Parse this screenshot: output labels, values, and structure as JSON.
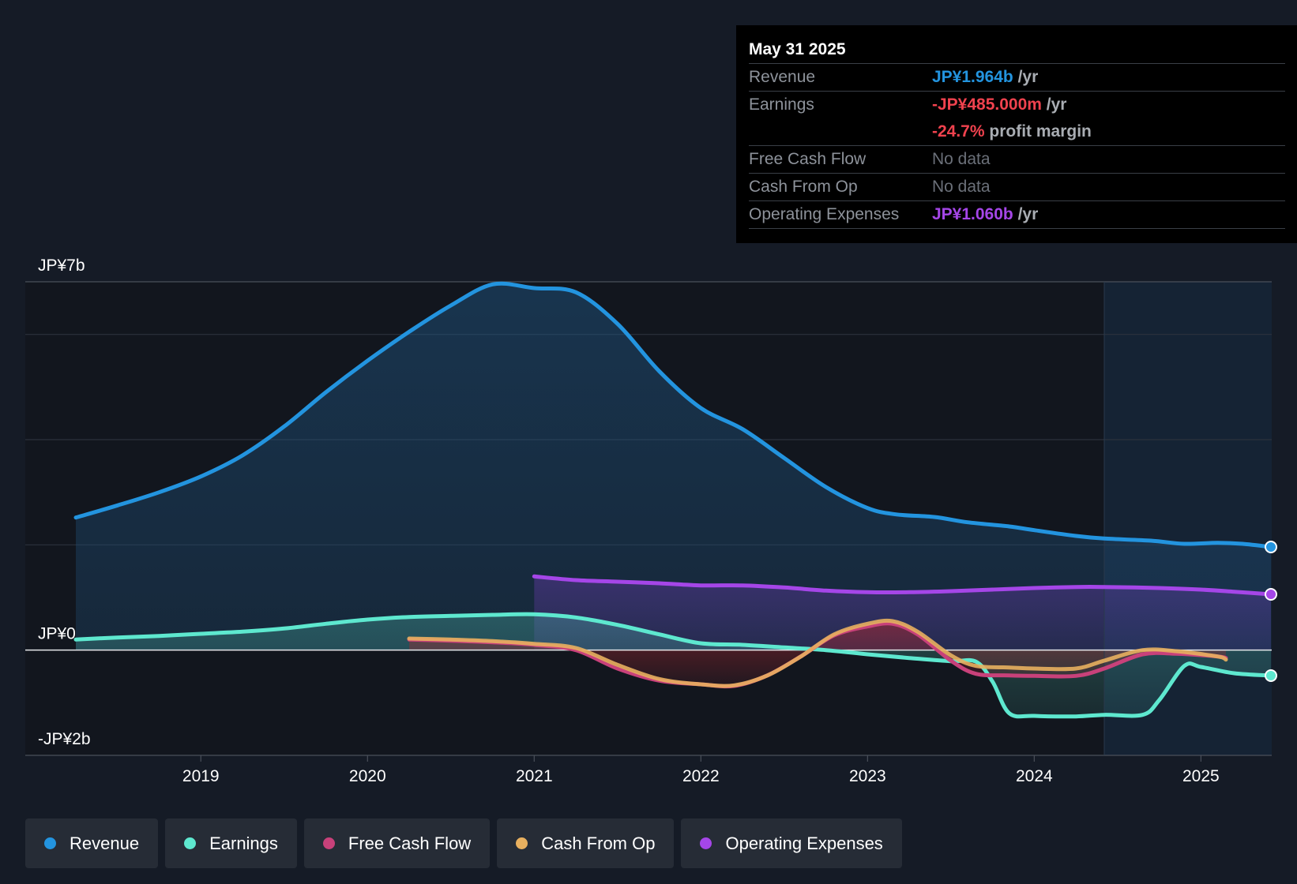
{
  "tooltip": {
    "date": "May 31 2025",
    "rows": {
      "revenue": {
        "label": "Revenue",
        "value": "JP¥1.964b",
        "unit": "/yr"
      },
      "earnings": {
        "label": "Earnings",
        "value": "-JP¥485.000m",
        "unit": "/yr",
        "margin_value": "-24.7%",
        "margin_unit": "profit margin"
      },
      "fcf": {
        "label": "Free Cash Flow",
        "value": "No data"
      },
      "cfo": {
        "label": "Cash From Op",
        "value": "No data"
      },
      "opex": {
        "label": "Operating Expenses",
        "value": "JP¥1.060b",
        "unit": "/yr"
      }
    }
  },
  "legend": {
    "revenue": "Revenue",
    "earnings": "Earnings",
    "fcf": "Free Cash Flow",
    "cfo": "Cash From Op",
    "opex": "Operating Expenses"
  },
  "colors": {
    "revenue": "#2394df",
    "earnings": "#5ee8cf",
    "fcf": "#c8417a",
    "cfo": "#e8b05f",
    "opex": "#a546e8",
    "earnings_negative": "#f0424e"
  },
  "chart_data": {
    "type": "area",
    "title": "",
    "y_unit": "JP¥ billions",
    "ylim": [
      -2,
      7
    ],
    "xlim": [
      2018.25,
      2025.42
    ],
    "y_labels": [
      {
        "value": 7,
        "label": "JP¥7b"
      },
      {
        "value": 0,
        "label": "JP¥0"
      },
      {
        "value": -2,
        "label": "-JP¥2b"
      }
    ],
    "gridlines": [
      7,
      6,
      4,
      2,
      0,
      -2
    ],
    "x_ticks": [
      {
        "value": 2019,
        "label": "2019"
      },
      {
        "value": 2020,
        "label": "2020"
      },
      {
        "value": 2021,
        "label": "2021"
      },
      {
        "value": 2022,
        "label": "2022"
      },
      {
        "value": 2023,
        "label": "2023"
      },
      {
        "value": 2024,
        "label": "2024"
      },
      {
        "value": 2025,
        "label": "2025"
      }
    ],
    "forecast_start": 2024.42,
    "series": [
      {
        "name": "Revenue",
        "key": "revenue",
        "points": [
          [
            2018.25,
            2.52
          ],
          [
            2018.5,
            2.75
          ],
          [
            2018.75,
            3.0
          ],
          [
            2019.0,
            3.3
          ],
          [
            2019.25,
            3.7
          ],
          [
            2019.5,
            4.25
          ],
          [
            2019.75,
            4.9
          ],
          [
            2020.0,
            5.5
          ],
          [
            2020.25,
            6.05
          ],
          [
            2020.5,
            6.55
          ],
          [
            2020.75,
            6.95
          ],
          [
            2021.0,
            6.88
          ],
          [
            2021.25,
            6.8
          ],
          [
            2021.5,
            6.2
          ],
          [
            2021.75,
            5.3
          ],
          [
            2022.0,
            4.6
          ],
          [
            2022.25,
            4.2
          ],
          [
            2022.5,
            3.65
          ],
          [
            2022.75,
            3.1
          ],
          [
            2023.0,
            2.7
          ],
          [
            2023.17,
            2.58
          ],
          [
            2023.4,
            2.53
          ],
          [
            2023.6,
            2.43
          ],
          [
            2023.85,
            2.35
          ],
          [
            2024.0,
            2.28
          ],
          [
            2024.25,
            2.17
          ],
          [
            2024.42,
            2.12
          ],
          [
            2024.7,
            2.08
          ],
          [
            2024.9,
            2.02
          ],
          [
            2025.1,
            2.04
          ],
          [
            2025.25,
            2.02
          ],
          [
            2025.42,
            1.96
          ]
        ]
      },
      {
        "name": "Earnings",
        "key": "earnings",
        "points": [
          [
            2018.25,
            0.2
          ],
          [
            2018.5,
            0.24
          ],
          [
            2018.75,
            0.27
          ],
          [
            2019.0,
            0.31
          ],
          [
            2019.25,
            0.35
          ],
          [
            2019.5,
            0.41
          ],
          [
            2019.75,
            0.5
          ],
          [
            2020.0,
            0.58
          ],
          [
            2020.25,
            0.63
          ],
          [
            2020.5,
            0.65
          ],
          [
            2020.75,
            0.67
          ],
          [
            2021.0,
            0.68
          ],
          [
            2021.25,
            0.62
          ],
          [
            2021.5,
            0.48
          ],
          [
            2021.75,
            0.3
          ],
          [
            2022.0,
            0.13
          ],
          [
            2022.25,
            0.1
          ],
          [
            2022.5,
            0.05
          ],
          [
            2022.75,
            0.0
          ],
          [
            2023.0,
            -0.08
          ],
          [
            2023.25,
            -0.15
          ],
          [
            2023.5,
            -0.21
          ],
          [
            2023.65,
            -0.22
          ],
          [
            2023.75,
            -0.6
          ],
          [
            2023.85,
            -1.2
          ],
          [
            2024.0,
            -1.25
          ],
          [
            2024.25,
            -1.26
          ],
          [
            2024.42,
            -1.23
          ],
          [
            2024.65,
            -1.23
          ],
          [
            2024.75,
            -0.95
          ],
          [
            2024.9,
            -0.3
          ],
          [
            2025.0,
            -0.32
          ],
          [
            2025.2,
            -0.44
          ],
          [
            2025.42,
            -0.485
          ]
        ]
      },
      {
        "name": "Free Cash Flow",
        "key": "fcf",
        "points": [
          [
            2020.25,
            0.2
          ],
          [
            2020.5,
            0.18
          ],
          [
            2020.75,
            0.15
          ],
          [
            2021.0,
            0.1
          ],
          [
            2021.25,
            0.0
          ],
          [
            2021.5,
            -0.35
          ],
          [
            2021.75,
            -0.58
          ],
          [
            2022.0,
            -0.65
          ],
          [
            2022.2,
            -0.68
          ],
          [
            2022.4,
            -0.48
          ],
          [
            2022.6,
            -0.12
          ],
          [
            2022.8,
            0.28
          ],
          [
            2023.0,
            0.45
          ],
          [
            2023.15,
            0.5
          ],
          [
            2023.3,
            0.3
          ],
          [
            2023.5,
            -0.2
          ],
          [
            2023.65,
            -0.45
          ],
          [
            2023.85,
            -0.48
          ],
          [
            2024.0,
            -0.49
          ],
          [
            2024.25,
            -0.49
          ],
          [
            2024.42,
            -0.35
          ],
          [
            2024.65,
            -0.08
          ],
          [
            2024.85,
            -0.07
          ],
          [
            2025.1,
            -0.12
          ],
          [
            2025.15,
            -0.15
          ]
        ]
      },
      {
        "name": "Cash From Op",
        "key": "cfo",
        "points": [
          [
            2020.25,
            0.22
          ],
          [
            2020.5,
            0.2
          ],
          [
            2020.75,
            0.17
          ],
          [
            2021.0,
            0.12
          ],
          [
            2021.25,
            0.04
          ],
          [
            2021.5,
            -0.28
          ],
          [
            2021.75,
            -0.55
          ],
          [
            2022.0,
            -0.65
          ],
          [
            2022.2,
            -0.67
          ],
          [
            2022.4,
            -0.48
          ],
          [
            2022.6,
            -0.12
          ],
          [
            2022.8,
            0.3
          ],
          [
            2023.0,
            0.5
          ],
          [
            2023.15,
            0.55
          ],
          [
            2023.3,
            0.35
          ],
          [
            2023.5,
            -0.1
          ],
          [
            2023.65,
            -0.3
          ],
          [
            2023.85,
            -0.33
          ],
          [
            2024.0,
            -0.35
          ],
          [
            2024.25,
            -0.35
          ],
          [
            2024.42,
            -0.2
          ],
          [
            2024.65,
            0.0
          ],
          [
            2024.85,
            -0.02
          ],
          [
            2025.1,
            -0.12
          ],
          [
            2025.15,
            -0.18
          ]
        ]
      },
      {
        "name": "Operating Expenses",
        "key": "opex",
        "points": [
          [
            2021.0,
            1.4
          ],
          [
            2021.25,
            1.33
          ],
          [
            2021.5,
            1.3
          ],
          [
            2021.75,
            1.27
          ],
          [
            2022.0,
            1.23
          ],
          [
            2022.25,
            1.23
          ],
          [
            2022.5,
            1.19
          ],
          [
            2022.75,
            1.13
          ],
          [
            2023.0,
            1.1
          ],
          [
            2023.25,
            1.1
          ],
          [
            2023.5,
            1.12
          ],
          [
            2023.75,
            1.15
          ],
          [
            2024.0,
            1.18
          ],
          [
            2024.25,
            1.2
          ],
          [
            2024.42,
            1.2
          ],
          [
            2024.75,
            1.18
          ],
          [
            2025.0,
            1.15
          ],
          [
            2025.2,
            1.11
          ],
          [
            2025.42,
            1.06
          ]
        ]
      }
    ]
  }
}
